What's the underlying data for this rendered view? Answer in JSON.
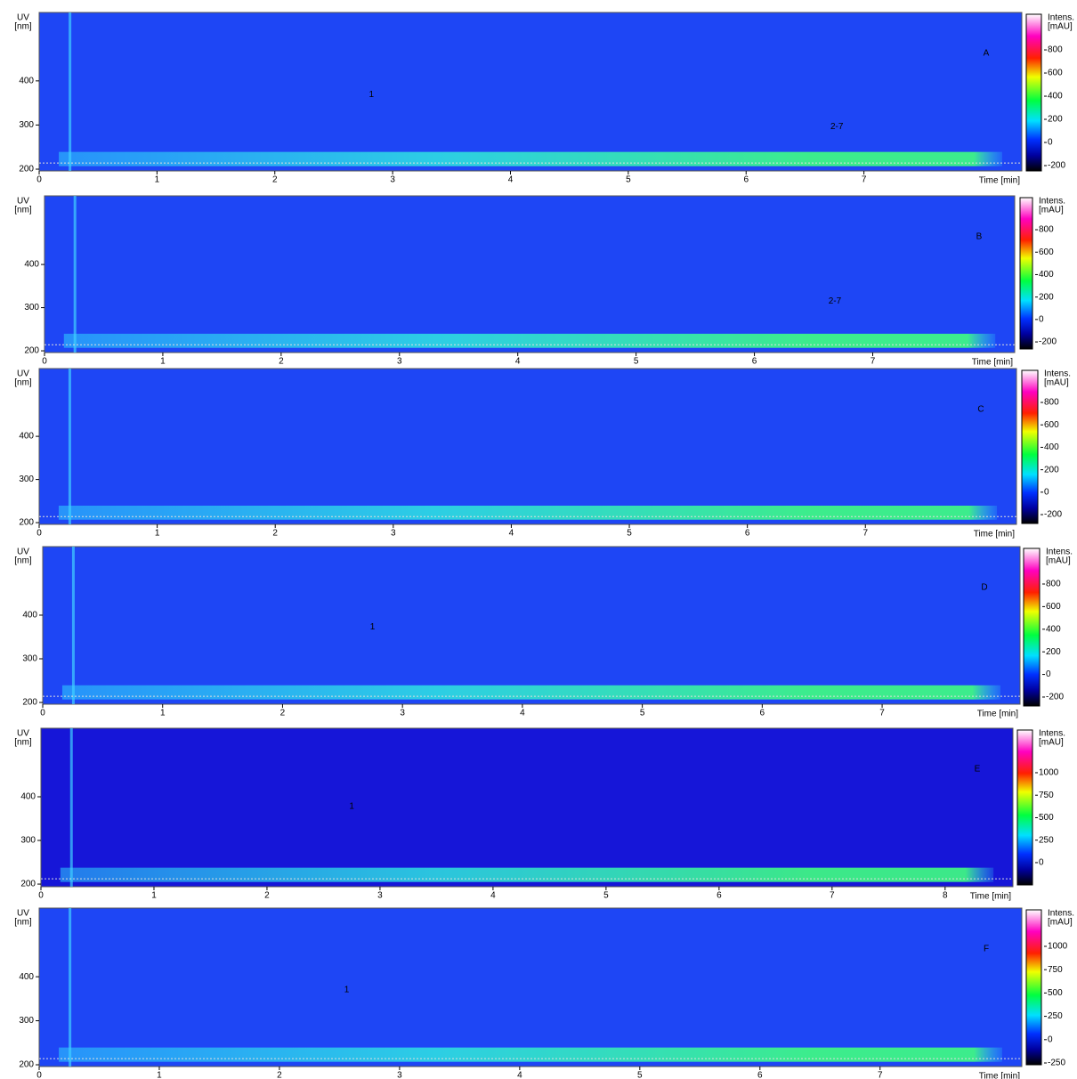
{
  "chart_data": [
    {
      "type": "heatmap",
      "title": "A",
      "ylabel": [
        "UV",
        "[nm]"
      ],
      "xlabel": "Time [min]",
      "colorbar_label": [
        "Intens.",
        "[mAU]"
      ],
      "xlim": [
        0,
        8.34
      ],
      "xticks": [
        0,
        1,
        2,
        3,
        4,
        5,
        6,
        7
      ],
      "ylim": [
        196,
        555
      ],
      "yticks": [
        200,
        300,
        400
      ],
      "clim": [
        -246,
        1108
      ],
      "cticks": [
        -200,
        0,
        200,
        400,
        600,
        800
      ],
      "background": "#1e46f5",
      "annotations": [
        {
          "text": "1",
          "x": 2.82,
          "y": 369
        },
        {
          "text": "2-7",
          "x": 6.77,
          "y": 296
        }
      ]
    },
    {
      "type": "heatmap",
      "title": "B",
      "ylabel": [
        "UV",
        "[nm]"
      ],
      "xlabel": "Time [min]",
      "colorbar_label": [
        "Intens.",
        "[mAU]"
      ],
      "xlim": [
        0,
        8.2
      ],
      "xticks": [
        0,
        1,
        2,
        3,
        4,
        5,
        6,
        7
      ],
      "ylim": [
        196,
        559
      ],
      "yticks": [
        200,
        300,
        400
      ],
      "clim": [
        -263,
        1086
      ],
      "cticks": [
        -200,
        0,
        200,
        400,
        600,
        800
      ],
      "background": "#1e46f5",
      "annotations": [
        {
          "text": "2-7",
          "x": 6.68,
          "y": 315
        }
      ]
    },
    {
      "type": "heatmap",
      "title": "C",
      "ylabel": [
        "UV",
        "[nm]"
      ],
      "xlabel": "Time [min]",
      "colorbar_label": [
        "Intens.",
        "[mAU]"
      ],
      "xlim": [
        0,
        8.28
      ],
      "xticks": [
        0,
        1,
        2,
        3,
        4,
        5,
        6,
        7
      ],
      "ylim": [
        196,
        557
      ],
      "yticks": [
        200,
        300,
        400
      ],
      "clim": [
        -279,
        1086
      ],
      "cticks": [
        -200,
        0,
        200,
        400,
        600,
        800
      ],
      "background": "#1e46f5",
      "annotations": []
    },
    {
      "type": "heatmap",
      "title": "D",
      "ylabel": [
        "UV",
        "[nm]"
      ],
      "xlabel": "Time [min]",
      "colorbar_label": [
        "Intens.",
        "[mAU]"
      ],
      "xlim": [
        0,
        8.15
      ],
      "xticks": [
        0,
        1,
        2,
        3,
        4,
        5,
        6,
        7
      ],
      "ylim": [
        196,
        557
      ],
      "yticks": [
        200,
        300,
        400
      ],
      "clim": [
        -279,
        1115
      ],
      "cticks": [
        -200,
        0,
        200,
        400,
        600,
        800
      ],
      "background": "#1e46f5",
      "annotations": [
        {
          "text": "1",
          "x": 2.75,
          "y": 373
        }
      ]
    },
    {
      "type": "heatmap",
      "title": "E",
      "ylabel": [
        "UV",
        "[nm]"
      ],
      "xlabel": "Time [min]",
      "colorbar_label": [
        "Intens.",
        "[mAU]"
      ],
      "xlim": [
        0,
        8.6
      ],
      "xticks": [
        0,
        1,
        2,
        3,
        4,
        5,
        6,
        7,
        8
      ],
      "ylim": [
        194,
        557
      ],
      "yticks": [
        200,
        300,
        400
      ],
      "clim": [
        -248,
        1475
      ],
      "cticks": [
        0,
        250,
        500,
        750,
        1000
      ],
      "background": "#1616d8",
      "annotations": [
        {
          "text": "1",
          "x": 2.75,
          "y": 378
        }
      ]
    },
    {
      "type": "heatmap",
      "title": "F",
      "ylabel": [
        "UV",
        "[nm]"
      ],
      "xlabel": "Time [min]",
      "colorbar_label": [
        "Intens.",
        "[mAU]"
      ],
      "xlim": [
        0,
        8.18
      ],
      "xticks": [
        0,
        1,
        2,
        3,
        4,
        5,
        6,
        7
      ],
      "ylim": [
        196,
        556
      ],
      "yticks": [
        200,
        300,
        400
      ],
      "clim": [
        -269,
        1391
      ],
      "cticks": [
        -250,
        0,
        250,
        500,
        750,
        1000
      ],
      "background": "#1e46f5",
      "annotations": [
        {
          "text": "1",
          "x": 2.56,
          "y": 370
        }
      ]
    }
  ]
}
